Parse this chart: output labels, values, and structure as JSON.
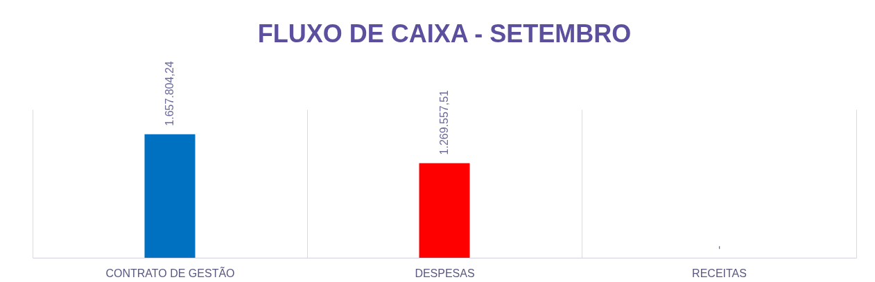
{
  "chart_data": {
    "type": "bar",
    "title": "FLUXO DE CAIXA - SETEMBRO",
    "categories": [
      "CONTRATO DE GESTÃO",
      "DESPESAS",
      "RECEITAS"
    ],
    "values": [
      1657804.24,
      1269557.51,
      0
    ],
    "value_labels": [
      "1.657.804,24",
      "1.269.557,51",
      "-"
    ],
    "colors": [
      "#0070c0",
      "#ff0000",
      "#a5a5a5"
    ],
    "grid": "x",
    "legend": false
  }
}
